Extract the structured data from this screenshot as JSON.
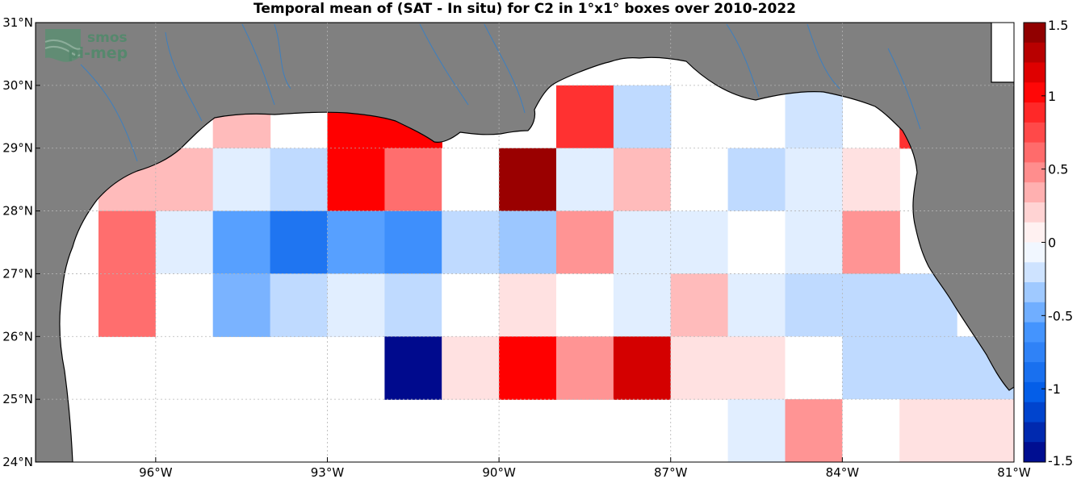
{
  "title": "Temporal mean of (SAT - In situ) for C2 in 1°x1° boxes over 2010-2022",
  "logo": {
    "line1": "smos",
    "line2": "pi-mep"
  },
  "colors": {
    "land": "#808080",
    "ocean": "#ffffff",
    "coast": "#000000",
    "rivers": "#3d7fbf",
    "grid": "#b4b4b4",
    "logo": "#4f8a6a"
  },
  "map": {
    "lon_range": [
      -98.1,
      -81
    ],
    "lat_range": [
      24,
      31
    ],
    "x_ticks": [
      {
        "value": -96,
        "label": "96°W"
      },
      {
        "value": -93,
        "label": "93°W"
      },
      {
        "value": -90,
        "label": "90°W"
      },
      {
        "value": -87,
        "label": "87°W"
      },
      {
        "value": -84,
        "label": "84°W"
      },
      {
        "value": -81,
        "label": "81°W"
      }
    ],
    "y_ticks": [
      {
        "value": 24,
        "label": "24°N"
      },
      {
        "value": 25,
        "label": "25°N"
      },
      {
        "value": 26,
        "label": "26°N"
      },
      {
        "value": 27,
        "label": "27°N"
      },
      {
        "value": 28,
        "label": "28°N"
      },
      {
        "value": 29,
        "label": "29°N"
      },
      {
        "value": 30,
        "label": "30°N"
      },
      {
        "value": 31,
        "label": "31°N"
      }
    ],
    "grid": true,
    "colorbar": {
      "min": -1.5,
      "max": 1.5,
      "levels": 22,
      "ticks": [
        {
          "value": 1.5,
          "label": "1.5"
        },
        {
          "value": 1,
          "label": "1"
        },
        {
          "value": 0.5,
          "label": "0.5"
        },
        {
          "value": 0,
          "label": "0"
        },
        {
          "value": -0.5,
          "label": "-0.5"
        },
        {
          "value": -1,
          "label": "-1"
        },
        {
          "value": -1.5,
          "label": "-1.5"
        }
      ]
    }
  },
  "chart_data": {
    "type": "heatmap",
    "title": "Temporal mean of (SAT - In situ) for C2 in 1°x1° boxes over 2010-2022",
    "x_axis": "longitude",
    "y_axis": "latitude",
    "cell_size_deg": 1,
    "value_range": [
      -1.5,
      1.5
    ],
    "cells": [
      {
        "lon": -96.5,
        "lat": 28.5,
        "value": 0.3
      },
      {
        "lon": -95.5,
        "lat": 28.5,
        "value": 0.3
      },
      {
        "lon": -94.5,
        "lat": 29.5,
        "value": 0.3
      },
      {
        "lon": -94.5,
        "lat": 28.5,
        "value": -0.15
      },
      {
        "lon": -93.5,
        "lat": 28.5,
        "value": -0.25
      },
      {
        "lon": -92.5,
        "lat": 29.5,
        "value": 1.05
      },
      {
        "lon": -92.5,
        "lat": 28.5,
        "value": 1.05
      },
      {
        "lon": -91.5,
        "lat": 29.5,
        "value": 1.05
      },
      {
        "lon": -91.5,
        "lat": 28.5,
        "value": 0.6
      },
      {
        "lon": -90.5,
        "lat": 28.5,
        "value": 0.0
      },
      {
        "lon": -89.5,
        "lat": 28.5,
        "value": 1.4
      },
      {
        "lon": -88.5,
        "lat": 29.5,
        "value": 0.85
      },
      {
        "lon": -88.5,
        "lat": 28.5,
        "value": -0.15
      },
      {
        "lon": -87.5,
        "lat": 29.5,
        "value": -0.25
      },
      {
        "lon": -87.5,
        "lat": 28.5,
        "value": 0.3
      },
      {
        "lon": -86.5,
        "lat": 28.5,
        "value": 0.0
      },
      {
        "lon": -85.5,
        "lat": 28.5,
        "value": -0.25
      },
      {
        "lon": -84.5,
        "lat": 29.5,
        "value": -0.2
      },
      {
        "lon": -84.5,
        "lat": 28.5,
        "value": -0.15
      },
      {
        "lon": -83.5,
        "lat": 28.5,
        "value": 0.15
      },
      {
        "lon": -82.5,
        "lat": 29.5,
        "value": 0.85
      },
      {
        "lon": -96.5,
        "lat": 27.5,
        "value": 0.6
      },
      {
        "lon": -96.5,
        "lat": 26.5,
        "value": 0.6
      },
      {
        "lon": -95.5,
        "lat": 27.5,
        "value": -0.15
      },
      {
        "lon": -94.5,
        "lat": 27.5,
        "value": -0.55
      },
      {
        "lon": -93.5,
        "lat": 27.5,
        "value": -0.85
      },
      {
        "lon": -92.5,
        "lat": 27.5,
        "value": -0.55
      },
      {
        "lon": -91.5,
        "lat": 27.5,
        "value": -0.65
      },
      {
        "lon": -90.5,
        "lat": 27.5,
        "value": -0.25
      },
      {
        "lon": -89.5,
        "lat": 27.5,
        "value": -0.35
      },
      {
        "lon": -88.5,
        "lat": 27.5,
        "value": 0.45
      },
      {
        "lon": -87.5,
        "lat": 27.5,
        "value": -0.15
      },
      {
        "lon": -86.5,
        "lat": 27.5,
        "value": -0.15
      },
      {
        "lon": -85.5,
        "lat": 27.5,
        "value": 0.0
      },
      {
        "lon": -84.5,
        "lat": 27.5,
        "value": -0.15
      },
      {
        "lon": -83.5,
        "lat": 27.5,
        "value": 0.45
      },
      {
        "lon": -95.5,
        "lat": 26.5,
        "value": 0.0
      },
      {
        "lon": -94.5,
        "lat": 26.5,
        "value": -0.45
      },
      {
        "lon": -93.5,
        "lat": 26.5,
        "value": -0.25
      },
      {
        "lon": -92.5,
        "lat": 26.5,
        "value": -0.15
      },
      {
        "lon": -91.5,
        "lat": 26.5,
        "value": -0.25
      },
      {
        "lon": -90.5,
        "lat": 26.5,
        "value": 0.0
      },
      {
        "lon": -89.5,
        "lat": 26.5,
        "value": 0.15
      },
      {
        "lon": -88.5,
        "lat": 26.5,
        "value": 0.0
      },
      {
        "lon": -87.5,
        "lat": 26.5,
        "value": -0.15
      },
      {
        "lon": -86.5,
        "lat": 26.5,
        "value": 0.3
      },
      {
        "lon": -85.5,
        "lat": 26.5,
        "value": -0.15
      },
      {
        "lon": -84.5,
        "lat": 26.5,
        "value": -0.25
      },
      {
        "lon": -83.5,
        "lat": 26.5,
        "value": -0.25
      },
      {
        "lon": -82.5,
        "lat": 26.5,
        "value": -0.25
      },
      {
        "lon": -91.5,
        "lat": 25.5,
        "value": -1.45
      },
      {
        "lon": -90.5,
        "lat": 25.5,
        "value": 0.15
      },
      {
        "lon": -89.5,
        "lat": 25.5,
        "value": 1.05
      },
      {
        "lon": -88.5,
        "lat": 25.5,
        "value": 0.45
      },
      {
        "lon": -87.5,
        "lat": 25.5,
        "value": 1.2
      },
      {
        "lon": -86.5,
        "lat": 25.5,
        "value": 0.15
      },
      {
        "lon": -85.5,
        "lat": 25.5,
        "value": 0.15
      },
      {
        "lon": -84.5,
        "lat": 25.5,
        "value": 0.0
      },
      {
        "lon": -83.5,
        "lat": 25.5,
        "value": -0.25
      },
      {
        "lon": -82.5,
        "lat": 25.5,
        "value": -0.25
      },
      {
        "lon": -81.5,
        "lat": 25.5,
        "value": -0.25
      },
      {
        "lon": -85.5,
        "lat": 24.5,
        "value": -0.15
      },
      {
        "lon": -84.5,
        "lat": 24.5,
        "value": 0.45
      },
      {
        "lon": -83.5,
        "lat": 24.5,
        "value": 0.0
      },
      {
        "lon": -82.5,
        "lat": 24.5,
        "value": 0.15
      },
      {
        "lon": -81.5,
        "lat": 24.5,
        "value": 0.15
      }
    ]
  }
}
